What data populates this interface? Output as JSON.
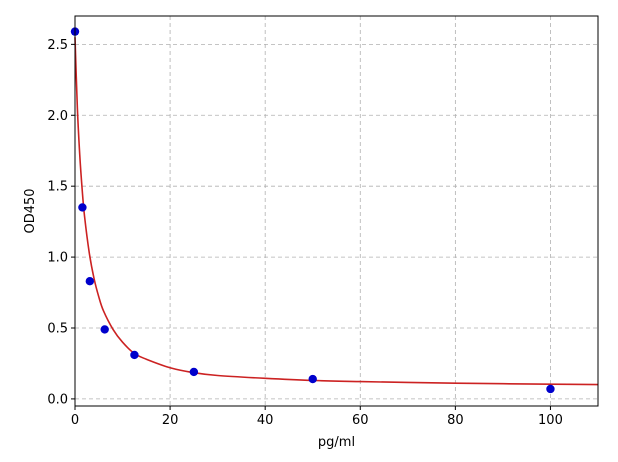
{
  "chart_data": {
    "type": "scatter",
    "title": "",
    "xlabel": "pg/ml",
    "ylabel": "OD450",
    "xlim": [
      0,
      110
    ],
    "ylim": [
      -0.05,
      2.7
    ],
    "xticks": [
      0,
      20,
      40,
      60,
      80,
      100
    ],
    "xtick_labels": [
      "0",
      "20",
      "40",
      "60",
      "80",
      "100"
    ],
    "yticks": [
      0.0,
      0.5,
      1.0,
      1.5,
      2.0,
      2.5
    ],
    "ytick_labels": [
      "0.0",
      "0.5",
      "1.0",
      "1.5",
      "2.0",
      "2.5"
    ],
    "grid": true,
    "series": [
      {
        "kind": "points",
        "color": "#0000cc",
        "x": [
          0,
          1.56,
          3.12,
          6.25,
          12.5,
          25,
          50,
          100
        ],
        "y": [
          2.59,
          1.35,
          0.83,
          0.49,
          0.31,
          0.19,
          0.14,
          0.07
        ]
      },
      {
        "kind": "fit-curve",
        "color": "#cc2222",
        "x": [
          0,
          0.5,
          1,
          1.5,
          2,
          3,
          4,
          5,
          6,
          8,
          10,
          12.5,
          15,
          20,
          25,
          30,
          40,
          50,
          60,
          70,
          80,
          90,
          100,
          110
        ],
        "y": [
          2.55,
          2.05,
          1.72,
          1.48,
          1.29,
          1.03,
          0.85,
          0.72,
          0.62,
          0.49,
          0.4,
          0.32,
          0.28,
          0.22,
          0.185,
          0.165,
          0.145,
          0.13,
          0.122,
          0.116,
          0.111,
          0.107,
          0.104,
          0.101
        ]
      }
    ]
  }
}
